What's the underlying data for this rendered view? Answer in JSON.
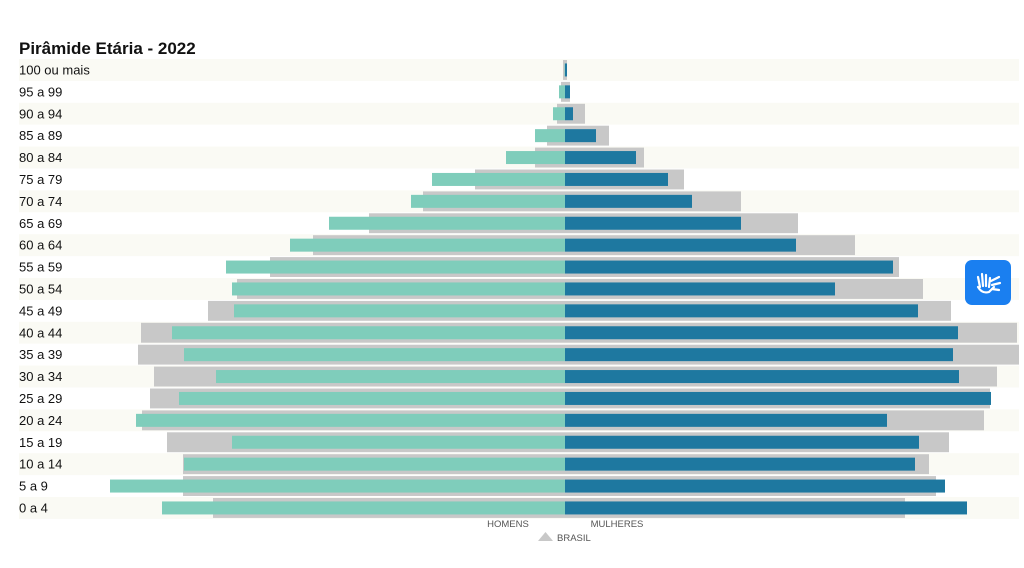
{
  "colors": {
    "men": "#7fcdbb",
    "women": "#1e78a0",
    "brasil": "#c8c8c8",
    "row_stripe": "#fafaf4",
    "accessibility_button": "#1a7ff0"
  },
  "accessibility_button": {
    "icon": "sign-language-hands-icon"
  },
  "chart_data": {
    "type": "bar",
    "orientation": "horizontal-population-pyramid",
    "title": "Pirâmide Etária - 2022",
    "categories": [
      "100 ou mais",
      "95 a 99",
      "90 a 94",
      "85 a 89",
      "80 a 84",
      "75 a 79",
      "70 a 74",
      "65 a 69",
      "60 a 64",
      "55 a 59",
      "50 a 54",
      "45 a 49",
      "40 a 44",
      "35 a 39",
      "30 a 34",
      "25 a 29",
      "20 a 24",
      "15 a 19",
      "10 a 14",
      "5 a 9",
      "0 a 4"
    ],
    "series": [
      {
        "name": "HOMENS",
        "side": "left",
        "values": [
          0.5,
          6,
          12,
          30,
          59,
          133,
          154,
          236,
          275,
          339,
          333,
          331,
          393,
          381,
          349,
          386,
          429,
          333,
          381,
          455,
          403
        ]
      },
      {
        "name": "MULHERES",
        "side": "right",
        "values": [
          2,
          5,
          8,
          31,
          71,
          103,
          127,
          176,
          231,
          328,
          270,
          353,
          393,
          388,
          394,
          426,
          322,
          354,
          350,
          380,
          402
        ]
      },
      {
        "name": "BRASIL",
        "side": "both",
        "values_left": [
          2,
          4,
          8,
          18,
          30,
          90,
          142,
          196,
          252,
          295,
          328,
          357,
          424,
          427,
          411,
          415,
          423,
          398,
          382,
          382,
          352
        ],
        "values_right": [
          2,
          5,
          20,
          44,
          79,
          119,
          176,
          233,
          290,
          334,
          358,
          386,
          452,
          454,
          432,
          425,
          419,
          384,
          364,
          371,
          340
        ]
      }
    ],
    "legend": {
      "placement": "bottom-center",
      "labels": [
        "HOMENS",
        "MULHERES",
        "BRASIL"
      ]
    }
  }
}
